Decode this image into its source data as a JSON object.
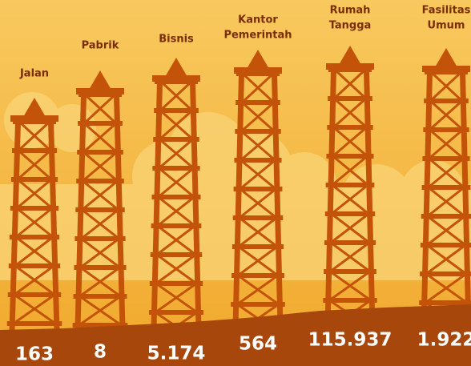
{
  "items": [
    {
      "label": [
        "Jalan"
      ],
      "value": "163"
    },
    {
      "label": [
        "Pabrik"
      ],
      "value": "8"
    },
    {
      "label": [
        "Bisnis"
      ],
      "value": "5.174"
    },
    {
      "label": [
        "Kantor",
        "Pemerintah"
      ],
      "value": "564"
    },
    {
      "label": [
        "Rumah",
        "Tangga"
      ],
      "value": "115.937"
    },
    {
      "label": [
        "Fasilitas",
        "Umum"
      ],
      "value": "1.922"
    }
  ]
}
